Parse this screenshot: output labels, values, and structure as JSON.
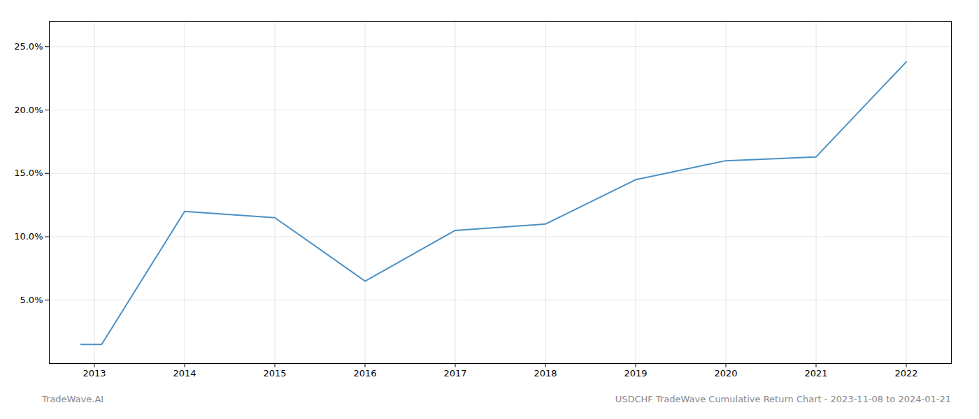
{
  "chart_data": {
    "type": "line",
    "x": [
      2012.85,
      2013.08,
      2014.0,
      2015.0,
      2016.0,
      2017.0,
      2018.0,
      2019.0,
      2020.0,
      2021.0,
      2022.0
    ],
    "values": [
      1.5,
      1.5,
      12.0,
      11.5,
      6.5,
      10.5,
      11.0,
      14.5,
      16.0,
      16.3,
      23.8
    ],
    "color": "#4a90c4",
    "xlim": [
      2012.5,
      2022.5
    ],
    "ylim": [
      0,
      27
    ],
    "xticks": [
      2013,
      2014,
      2015,
      2016,
      2017,
      2018,
      2019,
      2020,
      2021,
      2022
    ],
    "yticks": [
      {
        "value": 5.0,
        "label": "5.0%"
      },
      {
        "value": 10.0,
        "label": "10.0%"
      },
      {
        "value": 15.0,
        "label": "15.0%"
      },
      {
        "value": 20.0,
        "label": "20.0%"
      },
      {
        "value": 25.0,
        "label": "25.0%"
      }
    ],
    "grid": true,
    "annotations": [
      "TradeWave.AI",
      "USDCHF TradeWave Cumulative Return Chart - 2023-11-08 to 2024-01-21"
    ]
  }
}
